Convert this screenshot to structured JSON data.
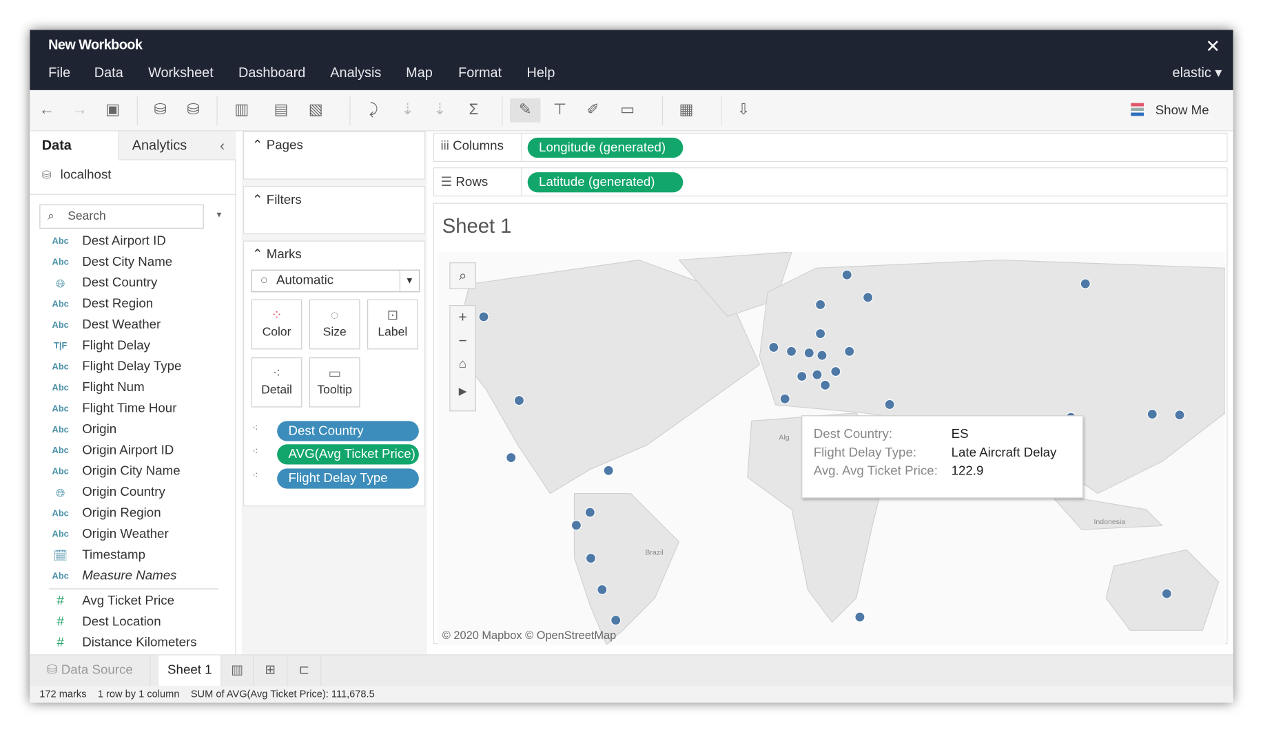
{
  "window": {
    "title": "New Workbook",
    "close": "✕",
    "user": "elastic ▾"
  },
  "menu": [
    "File",
    "Data",
    "Worksheet",
    "Dashboard",
    "Analysis",
    "Map",
    "Format",
    "Help"
  ],
  "toolbar": {
    "show_me": "Show Me"
  },
  "datapane": {
    "tab_data": "Data",
    "tab_analytics": "Analytics",
    "collapse": "‹",
    "connection": "localhost",
    "search_placeholder": "Search",
    "fields": [
      {
        "type": "Abc",
        "name": "Dest Airport ID"
      },
      {
        "type": "Abc",
        "name": "Dest City Name"
      },
      {
        "type": "globe",
        "name": "Dest Country"
      },
      {
        "type": "Abc",
        "name": "Dest Region"
      },
      {
        "type": "Abc",
        "name": "Dest Weather"
      },
      {
        "type": "T|F",
        "name": "Flight Delay"
      },
      {
        "type": "Abc",
        "name": "Flight Delay Type"
      },
      {
        "type": "Abc",
        "name": "Flight Num"
      },
      {
        "type": "Abc",
        "name": "Flight Time Hour"
      },
      {
        "type": "Abc",
        "name": "Origin"
      },
      {
        "type": "Abc",
        "name": "Origin Airport ID"
      },
      {
        "type": "Abc",
        "name": "Origin City Name"
      },
      {
        "type": "globe",
        "name": "Origin Country"
      },
      {
        "type": "Abc",
        "name": "Origin Region"
      },
      {
        "type": "Abc",
        "name": "Origin Weather"
      },
      {
        "type": "datetime",
        "name": "Timestamp"
      },
      {
        "type": "Abc",
        "name": "Measure Names"
      }
    ],
    "measures": [
      {
        "type": "#",
        "name": "Avg Ticket Price"
      },
      {
        "type": "#",
        "name": "Dest Location"
      },
      {
        "type": "#",
        "name": "Distance Kilometers"
      }
    ]
  },
  "cards": {
    "pages": "Pages",
    "filters": "Filters",
    "marks": "Marks",
    "mark_type": "Automatic",
    "buttons": [
      "Color",
      "Size",
      "Label",
      "Detail",
      "Tooltip"
    ],
    "pills": [
      {
        "label": "Dest Country",
        "color": "#3c8dbb"
      },
      {
        "label": "AVG(Avg Ticket Price)",
        "color": "#12a66b"
      },
      {
        "label": "Flight Delay Type",
        "color": "#3c8dbb"
      }
    ]
  },
  "shelves": {
    "columns_label": "Columns",
    "columns_pill": "Longitude (generated)",
    "rows_label": "Rows",
    "rows_pill": "Latitude (generated)"
  },
  "sheet": {
    "title": "Sheet 1",
    "copyright": "© 2020 Mapbox © OpenStreetMap",
    "map_labels": [
      "Brazil",
      "Indonesia",
      "Alg"
    ],
    "mark_color": "#4e79a7",
    "tooltip": [
      {
        "key": "Dest Country:",
        "value": "ES"
      },
      {
        "key": "Flight Delay Type:",
        "value": "Late Aircraft Delay"
      },
      {
        "key": "Avg. Avg Ticket Price:",
        "value": "122.9"
      }
    ]
  },
  "tabs": {
    "data_source": "Data Source",
    "sheet1": "Sheet 1"
  },
  "status": {
    "marks": "172 marks",
    "dims": "1 row by 1 column",
    "sum": "SUM of AVG(Avg Ticket Price): 111,678.5"
  }
}
